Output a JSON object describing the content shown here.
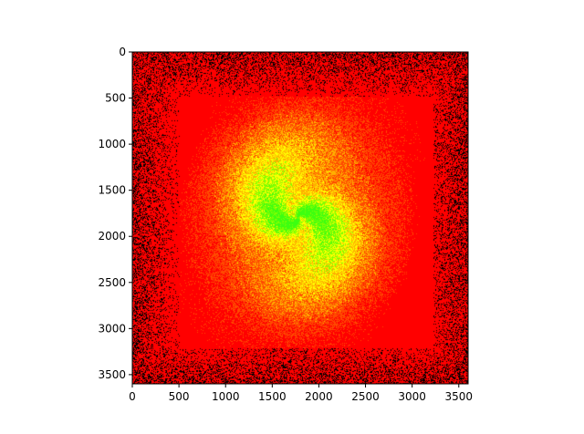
{
  "chart_data": {
    "type": "heatmap",
    "title": "",
    "xlabel": "",
    "ylabel": "",
    "xlim": [
      0,
      3600
    ],
    "ylim": [
      3600,
      0
    ],
    "x_ticks": [
      0,
      500,
      1000,
      1500,
      2000,
      2500,
      3000,
      3500
    ],
    "y_ticks": [
      0,
      500,
      1000,
      1500,
      2000,
      2500,
      3000,
      3500
    ],
    "grid": false,
    "legend": "none",
    "inner_frame": {
      "x0": 510,
      "x1": 3230,
      "y0": 480,
      "y1": 3210
    },
    "galaxy_center": [
      1780,
      1800
    ],
    "colors": {
      "background": "#ff0000",
      "noise": "#000000",
      "arms": "#ff4a00",
      "mid": "#ffb000",
      "bright": "#ffff00",
      "core": "#80ff00",
      "core_bright": "#3cff10"
    }
  }
}
